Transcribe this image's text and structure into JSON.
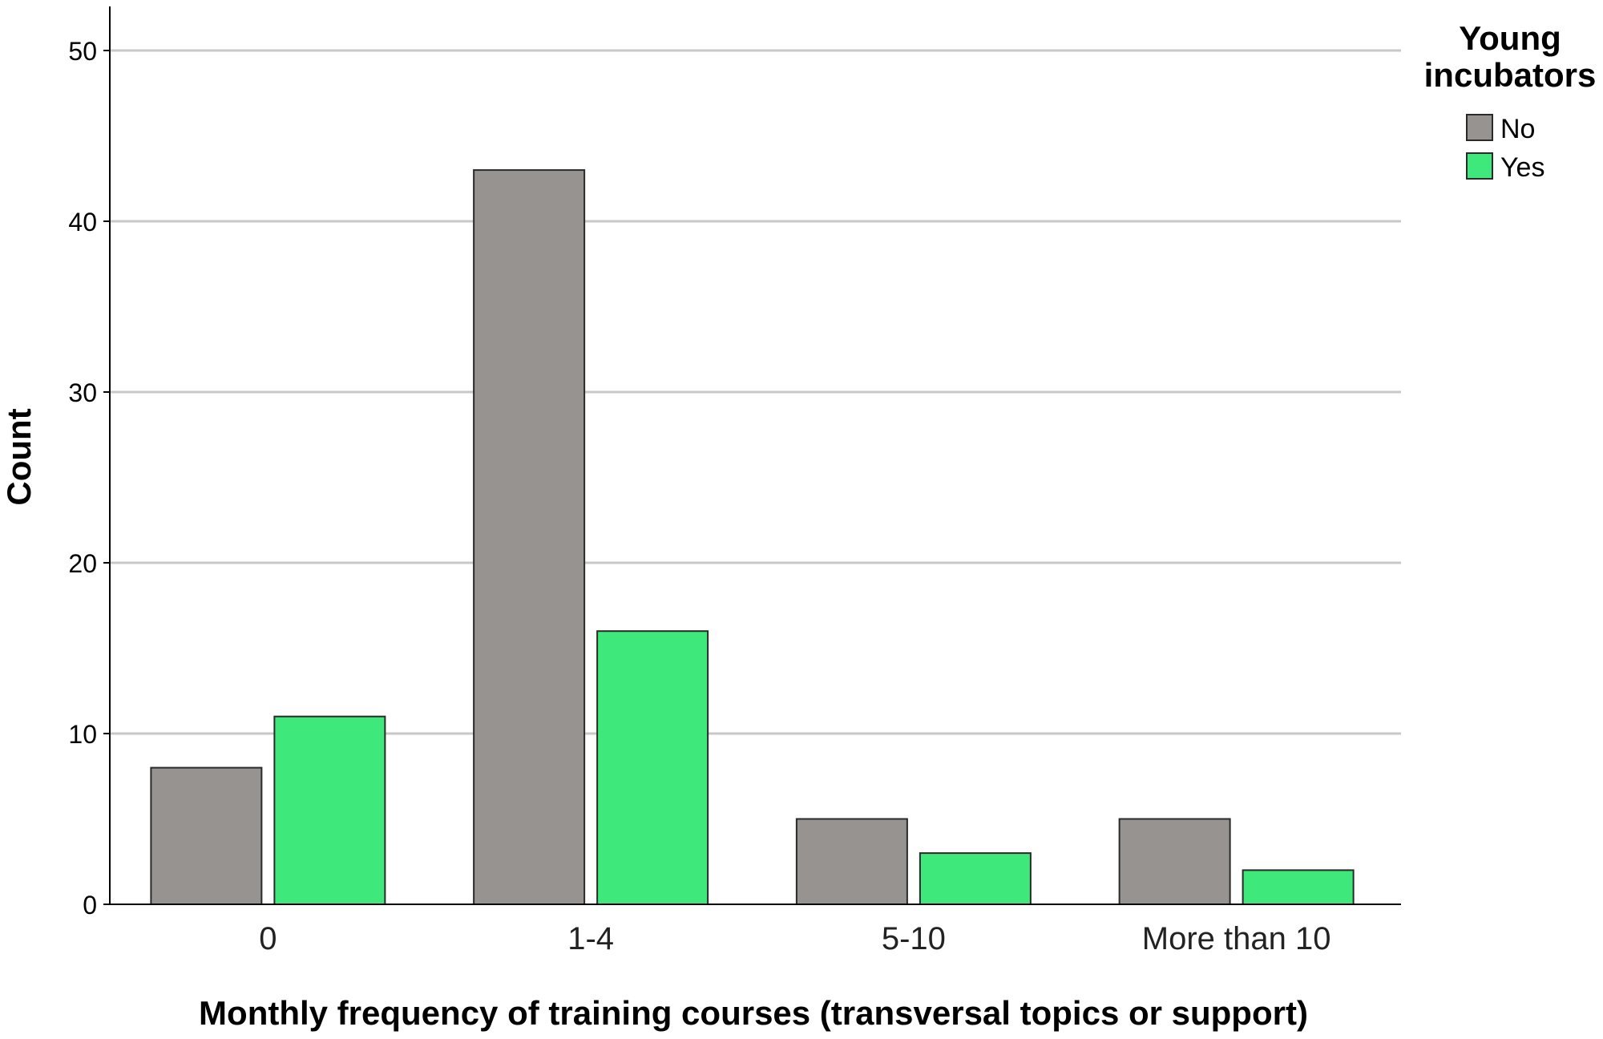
{
  "chart_data": {
    "type": "bar",
    "categories": [
      "0",
      "1-4",
      "5-10",
      "More than 10"
    ],
    "series": [
      {
        "name": "No",
        "color": "#979391",
        "values": [
          8,
          43,
          5,
          5
        ]
      },
      {
        "name": "Yes",
        "color": "#3ee87b",
        "values": [
          11,
          16,
          3,
          2
        ]
      }
    ],
    "yticks": [
      "0",
      "10",
      "20",
      "30",
      "40",
      "50"
    ],
    "ylim": [
      0,
      52
    ],
    "xlabel": "Monthly frequency of training courses (transversal topics or support)",
    "ylabel": "Count",
    "legend": {
      "title_lines": [
        "Young",
        "incubators"
      ],
      "position": "top-right"
    },
    "grid": true
  }
}
